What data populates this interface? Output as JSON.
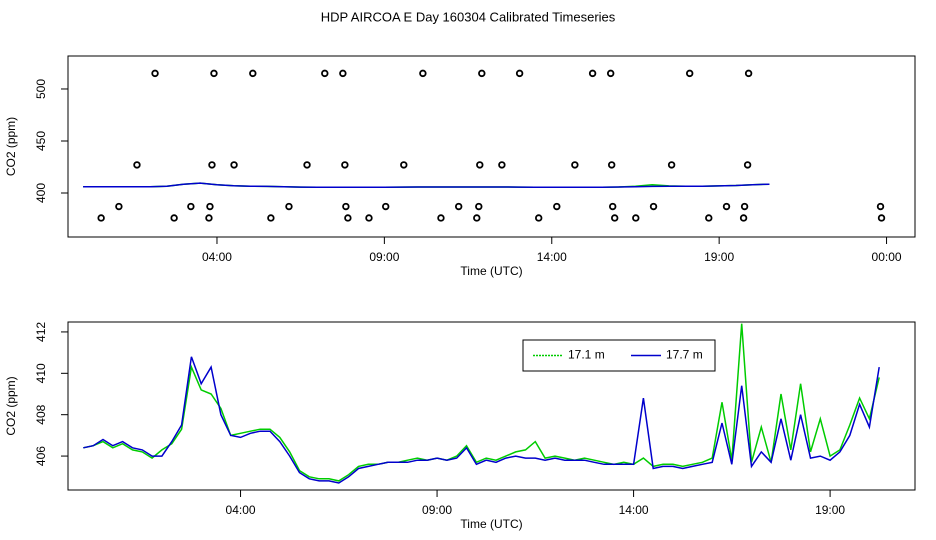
{
  "chart_data": [
    {
      "type": "scatter",
      "title": "HDP AIRCOA E  Day 160304  Calibrated Timeseries",
      "x_label": "Time (UTC)",
      "y_label": "CO2 (ppm)",
      "xlim": [
        -0.45,
        24.85
      ],
      "ylim": [
        357.7,
        531.7
      ],
      "xticks": [
        {
          "value": 4,
          "label": "04:00"
        },
        {
          "value": 9,
          "label": "09:00"
        },
        {
          "value": 14,
          "label": "14:00"
        },
        {
          "value": 19,
          "label": "19:00"
        },
        {
          "value": 24,
          "label": "00:00"
        }
      ],
      "yticks": [
        400,
        450,
        500
      ],
      "color": "#000000",
      "x": [
        2.15,
        3.91,
        5.07,
        7.22,
        7.76,
        10.15,
        11.91,
        13.04,
        15.22,
        15.76,
        18.12,
        19.88,
        1.61,
        3.85,
        4.51,
        6.69,
        7.82,
        9.58,
        11.85,
        12.51,
        14.69,
        15.79,
        17.58,
        19.85,
        1.07,
        3.22,
        3.79,
        6.15,
        7.85,
        9.04,
        11.22,
        11.82,
        14.15,
        15.82,
        17.04,
        19.22,
        19.76,
        23.82,
        0.54,
        2.72,
        3.76,
        5.61,
        7.91,
        8.54,
        10.69,
        11.76,
        13.61,
        15.88,
        16.51,
        18.69,
        19.73,
        23.85
      ],
      "values": [
        515,
        515,
        515,
        515,
        515,
        515,
        515,
        515,
        515,
        515,
        515,
        515,
        427,
        427,
        427,
        427,
        427,
        427,
        427,
        427,
        427,
        427,
        427,
        427,
        387,
        387,
        387,
        387,
        387,
        387,
        387,
        387,
        387,
        387,
        387,
        387,
        387,
        387,
        376,
        376,
        376,
        376,
        376,
        376,
        376,
        376,
        376,
        376,
        376,
        376,
        376,
        376
      ],
      "series": [
        {
          "color": "#00cc00",
          "x": [
            0,
            0.5,
            1,
            1.5,
            2,
            2.5,
            3,
            3.5,
            4,
            4.5,
            5,
            5.5,
            6,
            6.5,
            7,
            7.5,
            8,
            8.5,
            9,
            9.5,
            10,
            10.5,
            11,
            11.5,
            12,
            12.5,
            13,
            13.5,
            14,
            14.5,
            15,
            15.5,
            16,
            16.5,
            17,
            17.5,
            18,
            18.5,
            19,
            19.5,
            20,
            20.5
          ],
          "values": [
            406,
            406,
            406,
            406,
            406,
            406.5,
            408.5,
            409.5,
            408,
            407,
            406.5,
            406.3,
            406,
            405.7,
            405.5,
            405.5,
            405.5,
            405.5,
            405.6,
            405.7,
            405.8,
            405.8,
            405.8,
            405.8,
            405.8,
            405.8,
            405.7,
            405.6,
            405.5,
            405.5,
            405.5,
            405.6,
            405.8,
            406.5,
            408,
            406.8,
            406.5,
            406.5,
            406.8,
            407.2,
            408,
            408.5
          ]
        },
        {
          "color": "#0000cc",
          "x": [
            0,
            0.5,
            1,
            1.5,
            2,
            2.5,
            3,
            3.5,
            4,
            4.5,
            5,
            5.5,
            6,
            6.5,
            7,
            7.5,
            8,
            8.5,
            9,
            9.5,
            10,
            10.5,
            11,
            11.5,
            12,
            12.5,
            13,
            13.5,
            14,
            14.5,
            15,
            15.5,
            16,
            16.5,
            17,
            17.5,
            18,
            18.5,
            19,
            19.5,
            20,
            20.5
          ],
          "values": [
            406,
            406,
            406,
            406,
            406,
            406.5,
            408.5,
            409.5,
            408,
            407,
            406.5,
            406.3,
            406,
            405.7,
            405.5,
            405.5,
            405.5,
            405.5,
            405.6,
            405.7,
            405.8,
            405.8,
            405.8,
            405.8,
            405.8,
            405.8,
            405.7,
            405.6,
            405.5,
            405.5,
            405.5,
            405.6,
            405.8,
            406,
            406.3,
            406.5,
            406.5,
            406.5,
            406.8,
            407.2,
            408,
            408.5
          ]
        }
      ]
    },
    {
      "type": "line",
      "x_label": "Time (UTC)",
      "y_label": "CO2 (ppm)",
      "xlim": [
        -0.39,
        21.16
      ],
      "ylim": [
        404.36,
        412.48
      ],
      "xticks": [
        {
          "value": 4,
          "label": "04:00"
        },
        {
          "value": 9,
          "label": "09:00"
        },
        {
          "value": 14,
          "label": "14:00"
        },
        {
          "value": 19,
          "label": "19:00"
        }
      ],
      "yticks": [
        406,
        408,
        410,
        412
      ],
      "legend": "top-right",
      "x": [
        0,
        0.25,
        0.5,
        0.75,
        1,
        1.25,
        1.5,
        1.75,
        2,
        2.25,
        2.5,
        2.75,
        3,
        3.25,
        3.5,
        3.75,
        4,
        4.25,
        4.5,
        4.75,
        5,
        5.25,
        5.5,
        5.75,
        6,
        6.25,
        6.5,
        6.75,
        7,
        7.25,
        7.5,
        7.75,
        8,
        8.25,
        8.5,
        8.75,
        9,
        9.25,
        9.5,
        9.75,
        10,
        10.25,
        10.5,
        10.75,
        11,
        11.25,
        11.5,
        11.75,
        12,
        12.25,
        12.5,
        12.75,
        13,
        13.25,
        13.5,
        13.75,
        14,
        14.25,
        14.5,
        14.75,
        15,
        15.25,
        15.5,
        15.75,
        16,
        16.25,
        16.5,
        16.75,
        17,
        17.25,
        17.5,
        17.75,
        18,
        18.25,
        18.5,
        18.75,
        19,
        19.25,
        19.5,
        19.75,
        20,
        20.25
      ],
      "series": [
        {
          "name": "17.1 m",
          "color": "#00cc00",
          "values": [
            406.4,
            406.5,
            406.7,
            406.4,
            406.6,
            406.3,
            406.2,
            405.9,
            406.3,
            406.6,
            407.3,
            410.3,
            409.2,
            409.0,
            408.3,
            407.0,
            407.1,
            407.2,
            407.3,
            407.3,
            406.9,
            406.2,
            405.3,
            405.0,
            404.9,
            404.9,
            404.8,
            405.1,
            405.5,
            405.6,
            405.6,
            405.7,
            405.7,
            405.8,
            405.9,
            405.8,
            405.9,
            405.8,
            406.0,
            406.5,
            405.7,
            405.9,
            405.8,
            406.0,
            406.2,
            406.3,
            406.7,
            405.9,
            406.0,
            405.9,
            405.8,
            405.9,
            405.8,
            405.7,
            405.6,
            405.7,
            405.6,
            405.9,
            405.5,
            405.6,
            405.6,
            405.5,
            405.6,
            405.7,
            405.9,
            408.6,
            405.8,
            412.4,
            405.7,
            407.4,
            405.7,
            409.0,
            406.3,
            409.5,
            406.2,
            407.8,
            406.0,
            406.3,
            407.5,
            408.8,
            407.8,
            409.8
          ]
        },
        {
          "name": "17.7 m",
          "color": "#0000cc",
          "values": [
            406.4,
            406.5,
            406.8,
            406.5,
            406.7,
            406.4,
            406.3,
            406.0,
            406.0,
            406.7,
            407.5,
            410.8,
            409.5,
            410.3,
            408.0,
            407.0,
            406.9,
            407.1,
            407.2,
            407.2,
            406.7,
            406.0,
            405.2,
            404.9,
            404.8,
            404.8,
            404.7,
            405.0,
            405.4,
            405.5,
            405.6,
            405.7,
            405.7,
            405.7,
            405.8,
            405.8,
            405.9,
            405.8,
            405.9,
            406.4,
            405.6,
            405.8,
            405.7,
            405.9,
            406.0,
            405.9,
            405.9,
            405.8,
            405.9,
            405.8,
            405.8,
            405.8,
            405.7,
            405.6,
            405.6,
            405.6,
            405.6,
            408.8,
            405.4,
            405.5,
            405.5,
            405.4,
            405.5,
            405.6,
            405.7,
            407.6,
            405.6,
            409.4,
            405.5,
            406.2,
            405.7,
            407.8,
            405.8,
            408.0,
            405.9,
            406.0,
            405.8,
            406.2,
            407.0,
            408.5,
            407.4,
            410.3
          ]
        }
      ]
    }
  ]
}
